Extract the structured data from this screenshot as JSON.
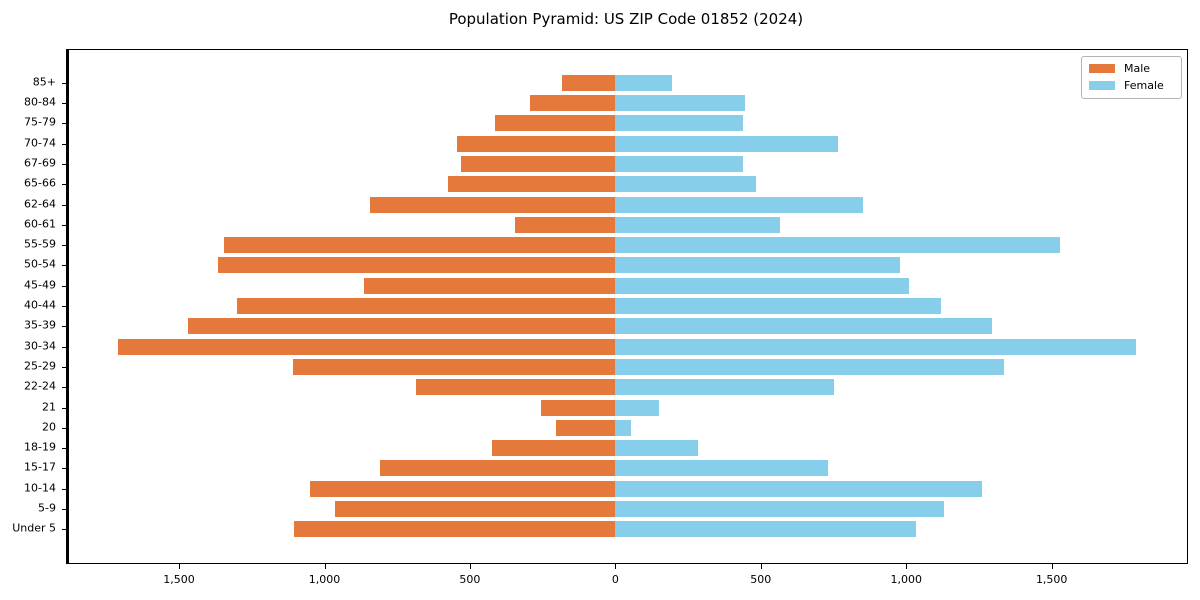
{
  "title": "Population Pyramid: US ZIP Code 01852 (2024)",
  "colors": {
    "male": "#e5793b",
    "female": "#87ceeb",
    "axis": "#000000",
    "legend_border": "#b4b4b4",
    "background": "#ffffff"
  },
  "legend": {
    "male_label": "Male",
    "female_label": "Female",
    "position": "upper right"
  },
  "chart_data": {
    "type": "bar",
    "subtype": "population-pyramid",
    "orientation": "horizontal",
    "title": "Population Pyramid: US ZIP Code 01852 (2024)",
    "xlabel": "",
    "ylabel": "",
    "grid": false,
    "legend_position": "upper right",
    "xlim": [
      -1885,
      1965
    ],
    "categories_top_to_bottom": [
      "85+",
      "80-84",
      "75-79",
      "70-74",
      "67-69",
      "65-66",
      "62-64",
      "60-61",
      "55-59",
      "50-54",
      "45-49",
      "40-44",
      "35-39",
      "30-34",
      "25-29",
      "22-24",
      "21",
      "20",
      "18-19",
      "15-17",
      "10-14",
      "5-9",
      "Under 5"
    ],
    "series": [
      {
        "name": "Male",
        "side": "left",
        "color": "#e5793b",
        "values": [
          185,
          295,
          415,
          545,
          530,
          575,
          845,
          345,
          1345,
          1365,
          865,
          1300,
          1470,
          1710,
          1110,
          685,
          255,
          205,
          425,
          810,
          1050,
          965,
          1105
        ]
      },
      {
        "name": "Female",
        "side": "right",
        "color": "#87ceeb",
        "values": [
          195,
          445,
          440,
          765,
          440,
          485,
          850,
          565,
          1530,
          980,
          1010,
          1120,
          1295,
          1790,
          1335,
          750,
          150,
          55,
          285,
          730,
          1260,
          1130,
          1035
        ]
      }
    ],
    "x_tick_values": [
      -1500,
      -1000,
      -500,
      0,
      500,
      1000,
      1500
    ],
    "x_tick_labels": [
      "1,500",
      "1,000",
      "500",
      "0",
      "500",
      "1,000",
      "1,500"
    ]
  }
}
